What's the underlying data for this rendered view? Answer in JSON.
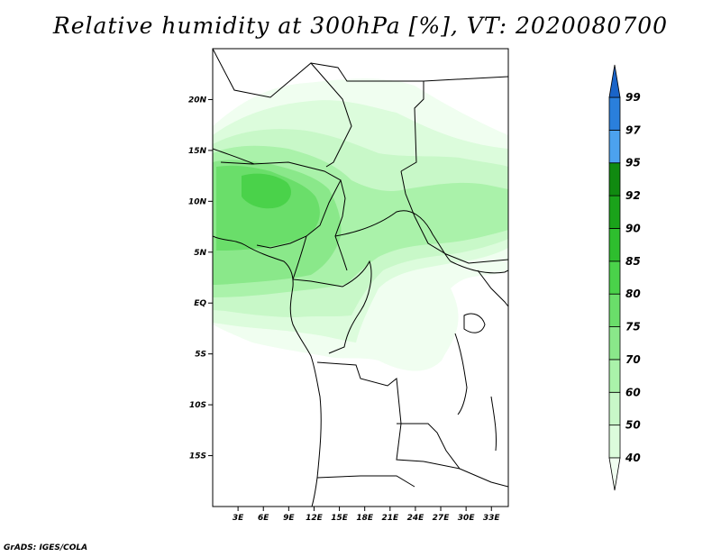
{
  "title": "Relative humidity at 300hPa [%], VT: 2020080700",
  "credit": "GrADS: IGES/COLA",
  "map": {
    "lat_labels": [
      "20N",
      "15N",
      "10N",
      "5N",
      "EQ",
      "5S",
      "10S",
      "15S"
    ],
    "lat_values": [
      20,
      15,
      10,
      5,
      0,
      -5,
      -10,
      -15
    ],
    "lon_labels": [
      "3E",
      "6E",
      "9E",
      "12E",
      "15E",
      "18E",
      "21E",
      "24E",
      "27E",
      "30E",
      "33E"
    ],
    "lon_values": [
      3,
      6,
      9,
      12,
      15,
      18,
      21,
      24,
      27,
      30,
      33
    ],
    "lon_range": [
      0,
      35
    ],
    "lat_range": [
      -20,
      25
    ]
  },
  "colorbar": {
    "labels": [
      "99",
      "97",
      "95",
      "92",
      "90",
      "85",
      "80",
      "75",
      "70",
      "60",
      "50",
      "40"
    ],
    "levels": [
      40,
      50,
      60,
      70,
      75,
      80,
      85,
      90,
      92,
      95,
      97,
      99
    ],
    "colors": [
      "#f0fef0",
      "#dcfcdc",
      "#c8f8c8",
      "#aaf2aa",
      "#8ae88a",
      "#6ade6a",
      "#4ad24a",
      "#2ebe2e",
      "#1aa31a",
      "#108a10",
      "#4ca2ee",
      "#2a7fdc",
      "#1a64c8"
    ]
  }
}
